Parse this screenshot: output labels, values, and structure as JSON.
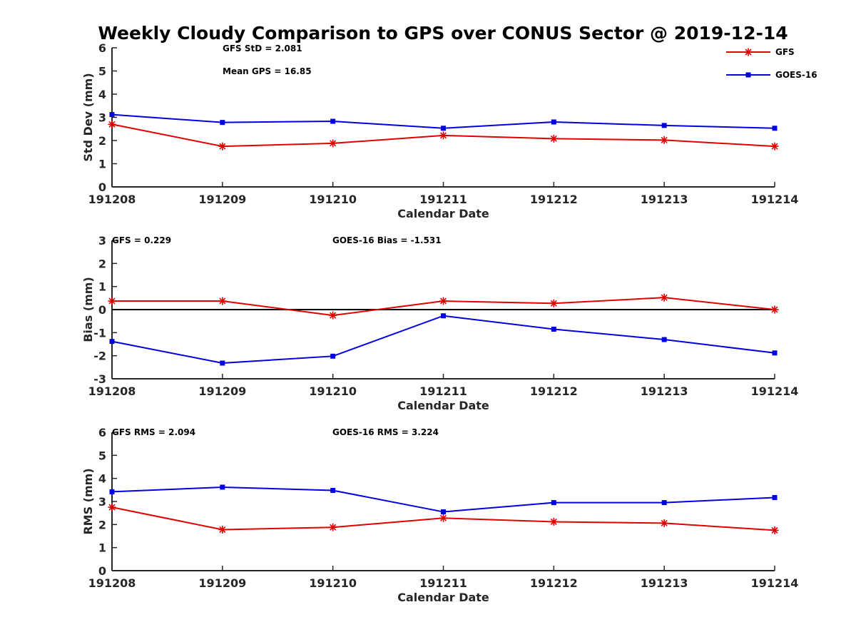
{
  "title": "Weekly Cloudy Comparison to GPS over CONUS Sector @ 2019-12-14",
  "legend": [
    {
      "name": "GFS",
      "color": "#e00000",
      "marker": "asterisk"
    },
    {
      "name": "GOES-16",
      "color": "#0000e0",
      "marker": "square"
    }
  ],
  "chart_data": [
    {
      "type": "line",
      "xlabel": "Calendar Date",
      "ylabel": "Std Dev (mm)",
      "x": [
        "191208",
        "191209",
        "191210",
        "191211",
        "191212",
        "191213",
        "191214"
      ],
      "ylim": [
        0,
        6
      ],
      "yticks": [
        "0",
        "1",
        "2",
        "3",
        "4",
        "5",
        "6"
      ],
      "series": [
        {
          "name": "GFS",
          "color": "#e00000",
          "marker": "asterisk",
          "values": [
            2.7,
            1.75,
            1.88,
            2.22,
            2.08,
            2.02,
            1.75
          ]
        },
        {
          "name": "GOES-16",
          "color": "#0000e0",
          "marker": "square",
          "values": [
            3.12,
            2.78,
            2.83,
            2.53,
            2.8,
            2.65,
            2.53
          ]
        }
      ],
      "zero_line": false,
      "annotations": [
        {
          "text": "GFS StD = 2.081"
        },
        {
          "text": "Mean GPS = 16.85"
        }
      ],
      "legend_position": "top-right"
    },
    {
      "type": "line",
      "xlabel": "Calendar Date",
      "ylabel": "Bias (mm)",
      "x": [
        "191208",
        "191209",
        "191210",
        "191211",
        "191212",
        "191213",
        "191214"
      ],
      "ylim": [
        -3,
        3
      ],
      "yticks": [
        "-3",
        "-2",
        "-1",
        "0",
        "1",
        "2",
        "3"
      ],
      "series": [
        {
          "name": "GFS",
          "color": "#e00000",
          "marker": "asterisk",
          "values": [
            0.37,
            0.37,
            -0.25,
            0.37,
            0.27,
            0.52,
            0.0
          ]
        },
        {
          "name": "GOES-16",
          "color": "#0000e0",
          "marker": "square",
          "values": [
            -1.38,
            -2.32,
            -2.02,
            -0.27,
            -0.85,
            -1.3,
            -1.88
          ]
        }
      ],
      "zero_line": true,
      "annotations": [
        {
          "text": "GFS = 0.229"
        },
        {
          "text": "GOES-16 Bias  = -1.531"
        }
      ]
    },
    {
      "type": "line",
      "xlabel": "Calendar Date",
      "ylabel": "RMS (mm)",
      "x": [
        "191208",
        "191209",
        "191210",
        "191211",
        "191212",
        "191213",
        "191214"
      ],
      "ylim": [
        0,
        6
      ],
      "yticks": [
        "0",
        "1",
        "2",
        "3",
        "4",
        "5",
        "6"
      ],
      "series": [
        {
          "name": "GFS",
          "color": "#e00000",
          "marker": "asterisk",
          "values": [
            2.75,
            1.78,
            1.88,
            2.28,
            2.12,
            2.06,
            1.75
          ]
        },
        {
          "name": "GOES-16",
          "color": "#0000e0",
          "marker": "square",
          "values": [
            3.42,
            3.62,
            3.48,
            2.55,
            2.95,
            2.95,
            3.17
          ]
        }
      ],
      "zero_line": false,
      "annotations": [
        {
          "text": "GFS RMS = 2.094"
        },
        {
          "text": "GOES-16 RMS = 3.224"
        }
      ]
    }
  ]
}
